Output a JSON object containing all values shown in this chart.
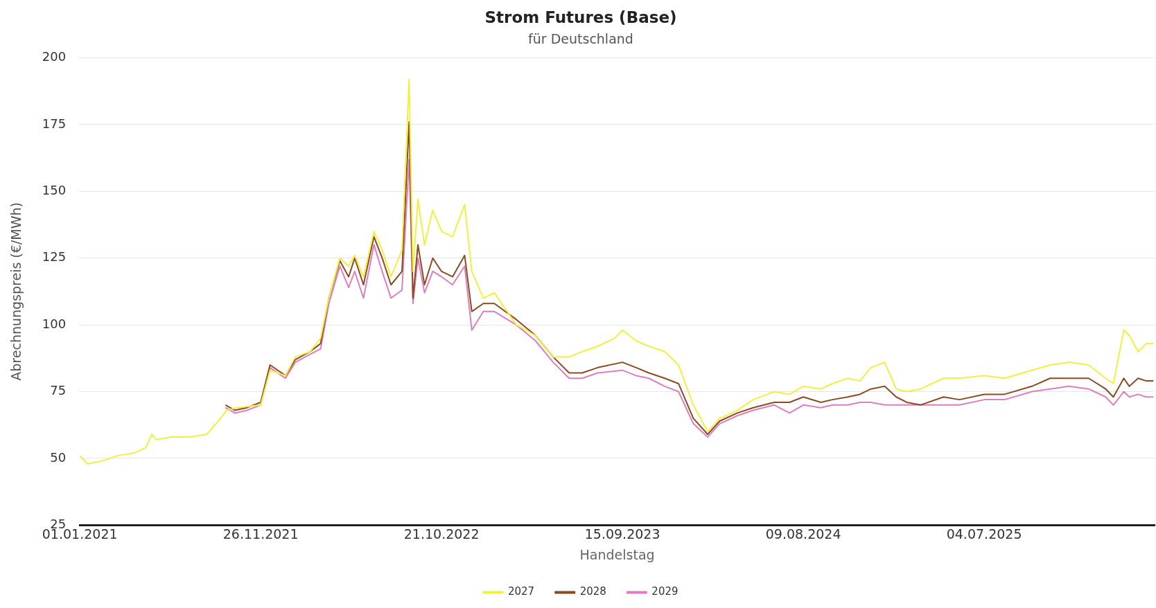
{
  "chart_data": {
    "type": "line",
    "title": "Strom Futures (Base)",
    "subtitle": "für Deutschland",
    "xlabel": "Handelstag",
    "ylabel": "Abrechnungspreis (€/MWh)",
    "xlim": [
      "2021-01-01",
      "2026-05-10"
    ],
    "xticks": [
      {
        "value": "2021-01-01",
        "label": "01.01.2021"
      },
      {
        "value": "2021-11-26",
        "label": "26.11.2021"
      },
      {
        "value": "2022-10-21",
        "label": "21.10.2022"
      },
      {
        "value": "2023-09-15",
        "label": "15.09.2023"
      },
      {
        "value": "2024-08-09",
        "label": "09.08.2024"
      },
      {
        "value": "2025-07-04",
        "label": "04.07.2025"
      }
    ],
    "ylim": [
      25,
      200
    ],
    "yticks": [
      25,
      50,
      75,
      100,
      125,
      150,
      175,
      200
    ],
    "grid": "y",
    "legend": "bottom",
    "marker": "none",
    "line_style": "solid",
    "series": [
      {
        "name": "2027",
        "color": "#f0f040",
        "x": [
          "2021-01-01",
          "2021-01-15",
          "2021-02-10",
          "2021-03-10",
          "2021-04-10",
          "2021-05-01",
          "2021-05-12",
          "2021-05-20",
          "2021-06-15",
          "2021-07-20",
          "2021-08-20",
          "2021-09-10",
          "2021-09-25",
          "2021-10-15",
          "2021-11-26",
          "2021-12-13",
          "2022-01-10",
          "2022-01-28",
          "2022-02-24",
          "2022-03-15",
          "2022-03-30",
          "2022-04-19",
          "2022-05-05",
          "2022-05-16",
          "2022-06-01",
          "2022-06-20",
          "2022-07-05",
          "2022-07-21",
          "2022-08-10",
          "2022-08-23",
          "2022-08-30",
          "2022-09-08",
          "2022-09-20",
          "2022-10-05",
          "2022-10-21",
          "2022-11-10",
          "2022-12-02",
          "2022-12-15",
          "2023-01-05",
          "2023-01-25",
          "2023-03-06",
          "2023-04-10",
          "2023-05-12",
          "2023-06-10",
          "2023-07-04",
          "2023-08-01",
          "2023-09-01",
          "2023-09-15",
          "2023-10-10",
          "2023-11-02",
          "2023-12-01",
          "2023-12-26",
          "2024-01-22",
          "2024-02-17",
          "2024-03-10",
          "2024-04-11",
          "2024-05-10",
          "2024-06-17",
          "2024-07-15",
          "2024-08-09",
          "2024-09-10",
          "2024-10-01",
          "2024-10-29",
          "2024-11-20",
          "2024-12-10",
          "2025-01-04",
          "2025-01-25",
          "2025-02-13",
          "2025-03-10",
          "2025-04-21",
          "2025-05-20",
          "2025-07-04",
          "2025-08-10",
          "2025-09-29",
          "2025-11-01",
          "2025-12-05",
          "2026-01-10",
          "2026-02-10",
          "2026-02-24",
          "2026-03-15",
          "2026-03-25",
          "2026-04-10",
          "2026-04-25",
          "2026-05-08"
        ],
        "values": [
          51,
          48,
          49,
          51,
          52,
          54,
          59,
          57,
          58,
          58,
          59,
          64,
          68,
          69,
          70,
          83,
          81,
          88,
          90,
          95,
          110,
          125,
          122,
          126,
          118,
          135,
          128,
          118,
          128,
          192,
          120,
          147,
          130,
          143,
          135,
          133,
          145,
          120,
          110,
          112,
          100,
          96,
          88,
          88,
          90,
          92,
          95,
          98,
          94,
          92,
          90,
          85,
          70,
          60,
          65,
          68,
          72,
          75,
          74,
          77,
          76,
          78,
          80,
          79,
          84,
          86,
          76,
          75,
          76,
          80,
          80,
          81,
          80,
          83,
          85,
          86,
          85,
          80,
          78,
          98,
          96,
          90,
          93,
          93
        ]
      },
      {
        "name": "2028",
        "color": "#8b4a22",
        "x": [
          "2021-09-23",
          "2021-10-10",
          "2021-11-01",
          "2021-11-26",
          "2021-12-13",
          "2022-01-10",
          "2022-01-28",
          "2022-02-24",
          "2022-03-15",
          "2022-03-30",
          "2022-04-19",
          "2022-05-05",
          "2022-05-16",
          "2022-06-01",
          "2022-06-20",
          "2022-07-05",
          "2022-07-21",
          "2022-08-10",
          "2022-08-23",
          "2022-08-30",
          "2022-09-08",
          "2022-09-20",
          "2022-10-05",
          "2022-10-21",
          "2022-11-10",
          "2022-12-02",
          "2022-12-15",
          "2023-01-05",
          "2023-01-25",
          "2023-03-06",
          "2023-04-10",
          "2023-05-12",
          "2023-06-10",
          "2023-07-04",
          "2023-08-01",
          "2023-09-15",
          "2023-10-10",
          "2023-11-02",
          "2023-12-01",
          "2023-12-26",
          "2024-01-22",
          "2024-02-17",
          "2024-03-10",
          "2024-04-11",
          "2024-05-10",
          "2024-06-17",
          "2024-07-15",
          "2024-08-09",
          "2024-09-10",
          "2024-10-01",
          "2024-10-29",
          "2024-11-20",
          "2024-12-10",
          "2025-01-04",
          "2025-01-25",
          "2025-02-13",
          "2025-03-10",
          "2025-04-21",
          "2025-05-20",
          "2025-07-04",
          "2025-08-10",
          "2025-09-29",
          "2025-11-01",
          "2025-12-05",
          "2026-01-10",
          "2026-02-10",
          "2026-02-24",
          "2026-03-15",
          "2026-03-25",
          "2026-04-10",
          "2026-04-25",
          "2026-05-08"
        ],
        "values": [
          70,
          68,
          69,
          71,
          85,
          81,
          87,
          90,
          93,
          110,
          124,
          118,
          125,
          115,
          133,
          125,
          115,
          120,
          176,
          110,
          130,
          115,
          125,
          120,
          118,
          126,
          105,
          108,
          108,
          102,
          96,
          88,
          82,
          82,
          84,
          86,
          84,
          82,
          80,
          78,
          65,
          59,
          64,
          67,
          69,
          71,
          71,
          73,
          71,
          72,
          73,
          74,
          76,
          77,
          73,
          71,
          70,
          73,
          72,
          74,
          74,
          77,
          80,
          80,
          80,
          76,
          73,
          80,
          77,
          80,
          79,
          79
        ]
      },
      {
        "name": "2029",
        "color": "#e07cc0",
        "x": [
          "2021-09-23",
          "2021-10-10",
          "2021-11-01",
          "2021-11-26",
          "2021-12-13",
          "2022-01-10",
          "2022-01-28",
          "2022-02-24",
          "2022-03-15",
          "2022-03-30",
          "2022-04-19",
          "2022-05-05",
          "2022-05-16",
          "2022-06-01",
          "2022-06-20",
          "2022-07-05",
          "2022-07-21",
          "2022-08-10",
          "2022-08-23",
          "2022-08-30",
          "2022-09-08",
          "2022-09-20",
          "2022-10-05",
          "2022-10-21",
          "2022-11-10",
          "2022-12-02",
          "2022-12-15",
          "2023-01-05",
          "2023-01-25",
          "2023-03-06",
          "2023-04-10",
          "2023-05-12",
          "2023-06-10",
          "2023-07-04",
          "2023-08-01",
          "2023-09-15",
          "2023-10-10",
          "2023-11-02",
          "2023-12-01",
          "2023-12-26",
          "2024-01-22",
          "2024-02-17",
          "2024-03-10",
          "2024-04-11",
          "2024-05-10",
          "2024-06-17",
          "2024-07-15",
          "2024-08-09",
          "2024-09-10",
          "2024-10-01",
          "2024-10-29",
          "2024-11-20",
          "2024-12-10",
          "2025-01-04",
          "2025-01-25",
          "2025-02-13",
          "2025-03-10",
          "2025-04-21",
          "2025-05-20",
          "2025-07-04",
          "2025-08-10",
          "2025-09-29",
          "2025-11-01",
          "2025-12-05",
          "2026-01-10",
          "2026-02-10",
          "2026-02-24",
          "2026-03-15",
          "2026-03-25",
          "2026-04-10",
          "2026-04-25",
          "2026-05-08"
        ],
        "values": [
          69,
          67,
          68,
          70,
          84,
          80,
          86,
          89,
          91,
          108,
          122,
          114,
          120,
          110,
          130,
          120,
          110,
          113,
          162,
          108,
          125,
          112,
          120,
          118,
          115,
          122,
          98,
          105,
          105,
          100,
          94,
          86,
          80,
          80,
          82,
          83,
          81,
          80,
          77,
          75,
          63,
          58,
          63,
          66,
          68,
          70,
          67,
          70,
          69,
          70,
          70,
          71,
          71,
          70,
          70,
          70,
          70,
          70,
          70,
          72,
          72,
          75,
          76,
          77,
          76,
          73,
          70,
          75,
          73,
          74,
          73,
          73
        ]
      }
    ]
  }
}
